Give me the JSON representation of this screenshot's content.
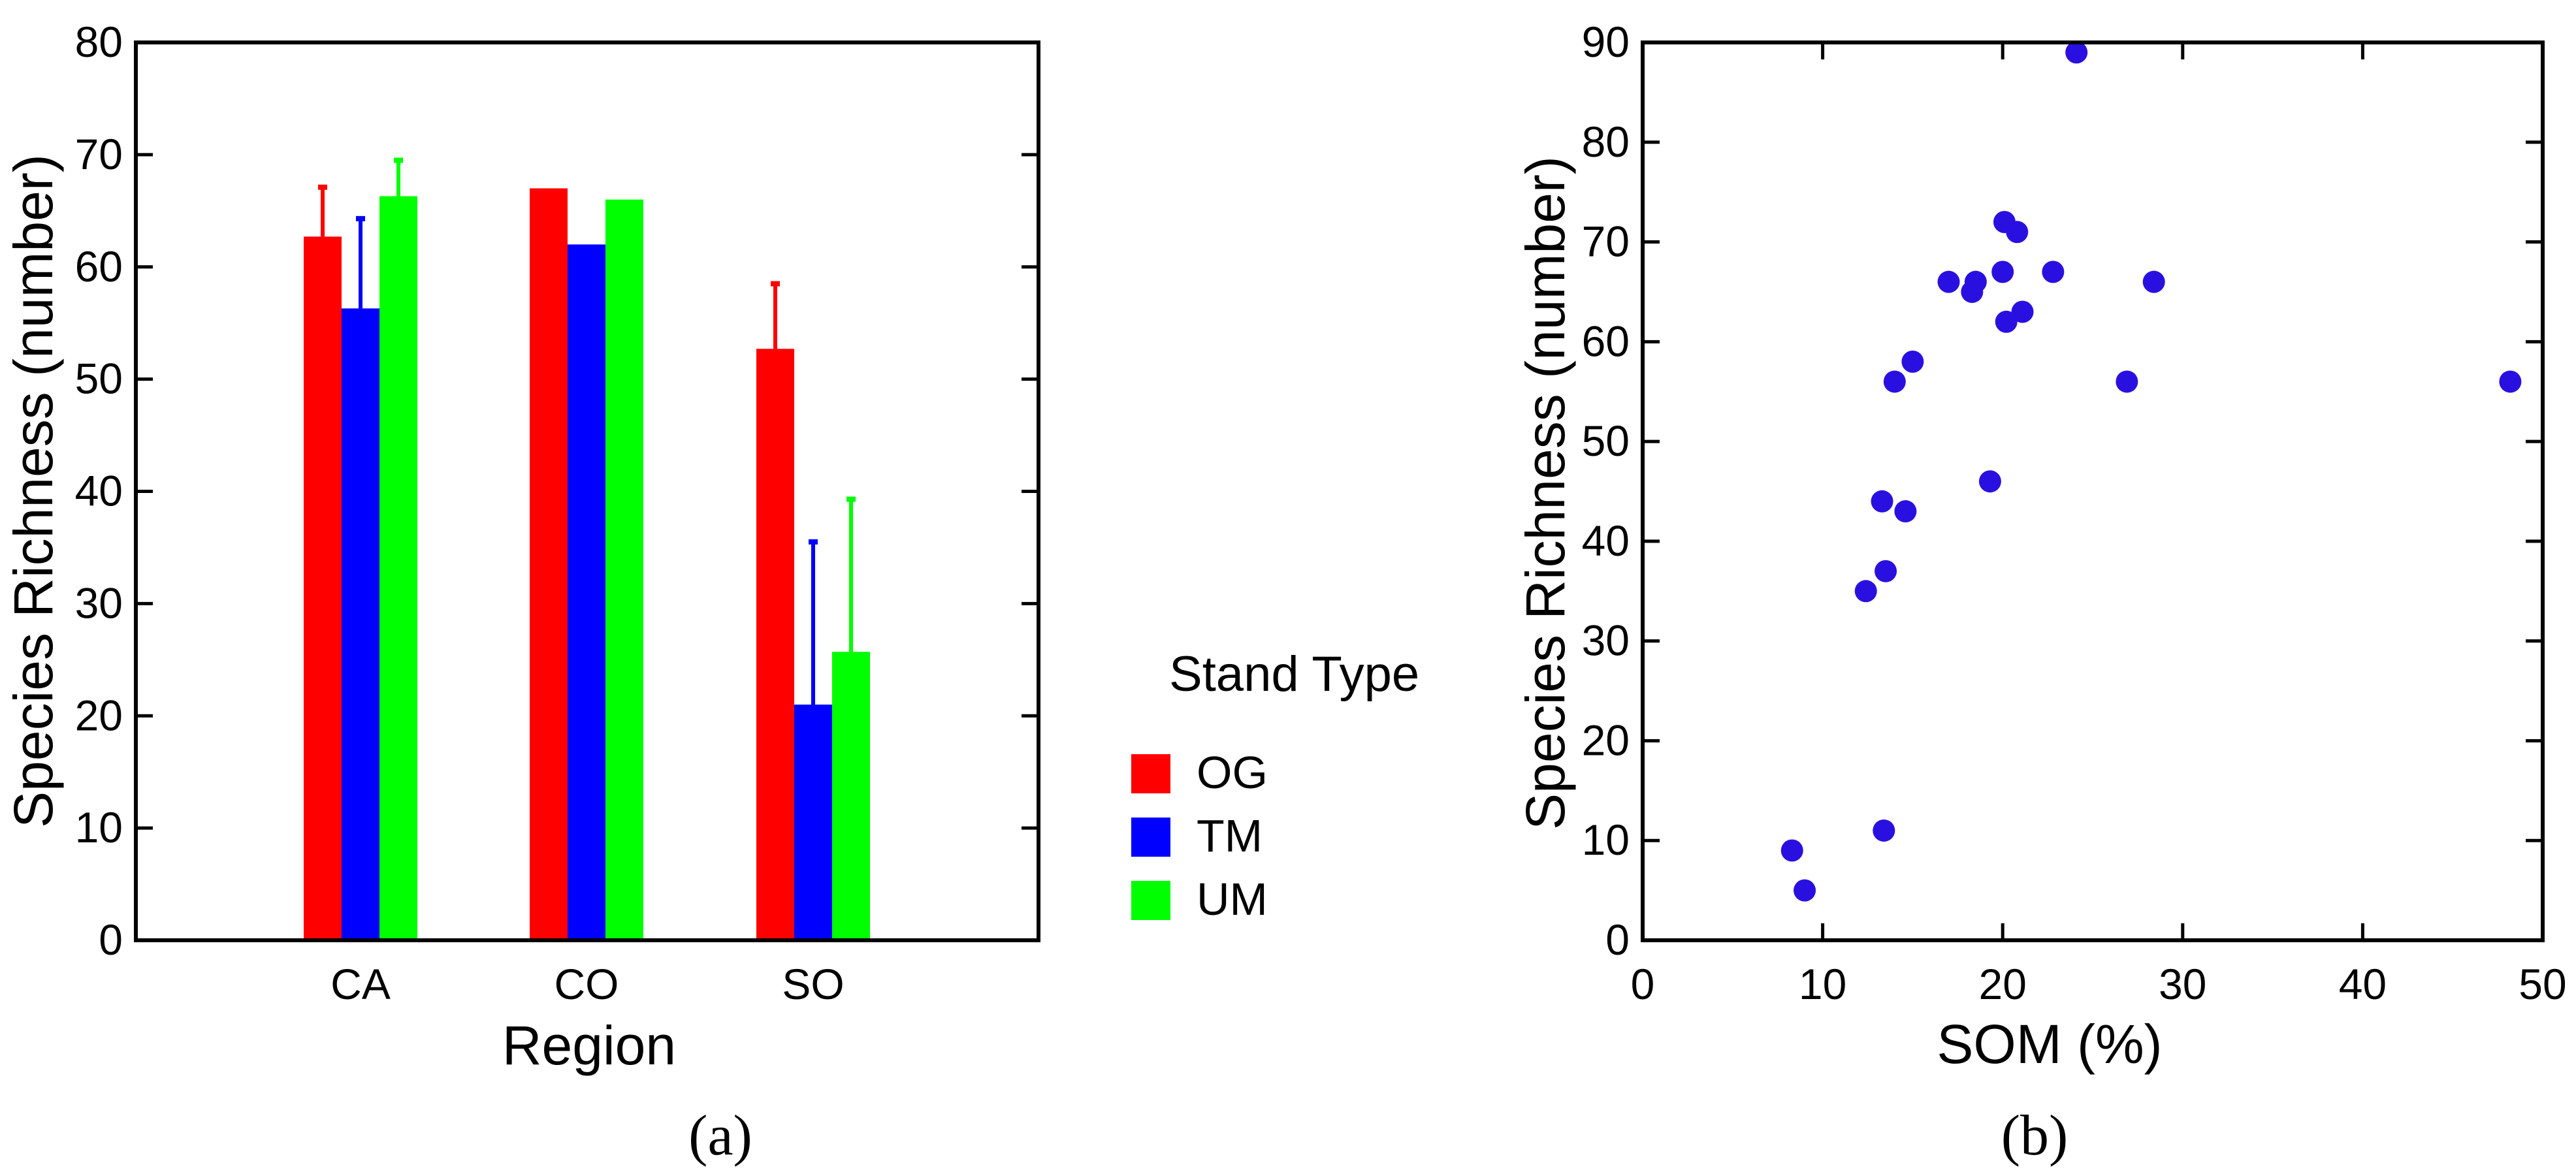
{
  "chart_data": [
    {
      "type": "bar",
      "panel_label": "(a)",
      "title": "",
      "xlabel": "Region",
      "ylabel": "Species Richness (number)",
      "ylim": [
        0,
        80
      ],
      "yticks": [
        "0",
        "10",
        "20",
        "30",
        "40",
        "50",
        "60",
        "70",
        "80"
      ],
      "categories": [
        "CA",
        "CO",
        "SO"
      ],
      "legend_title": "Stand Type",
      "legend_position": "right",
      "series": [
        {
          "name": "OG",
          "color": "#ff0000",
          "values": [
            62.7,
            67.0,
            52.7
          ],
          "errors": [
            4.4,
            0,
            5.8
          ]
        },
        {
          "name": "TM",
          "color": "#0000ff",
          "values": [
            56.3,
            62.0,
            21.0
          ],
          "errors": [
            8.0,
            0,
            14.5
          ]
        },
        {
          "name": "UM",
          "color": "#00ff00",
          "values": [
            66.3,
            66.0,
            25.7
          ],
          "errors": [
            3.2,
            0,
            13.6
          ]
        }
      ]
    },
    {
      "type": "scatter",
      "panel_label": "(b)",
      "title": "",
      "xlabel": "SOM (%)",
      "ylabel": "Species Richness (number)",
      "xlim": [
        0,
        50
      ],
      "ylim": [
        0,
        90
      ],
      "xticks": [
        "0",
        "10",
        "20",
        "30",
        "40",
        "50"
      ],
      "yticks": [
        "0",
        "10",
        "20",
        "30",
        "40",
        "50",
        "60",
        "70",
        "80",
        "90"
      ],
      "marker_color": "#2a10e0",
      "points": [
        {
          "x": 8.3,
          "y": 9
        },
        {
          "x": 9.0,
          "y": 5
        },
        {
          "x": 12.4,
          "y": 35
        },
        {
          "x": 13.3,
          "y": 44
        },
        {
          "x": 13.5,
          "y": 37
        },
        {
          "x": 13.4,
          "y": 11
        },
        {
          "x": 14.0,
          "y": 56
        },
        {
          "x": 14.6,
          "y": 43
        },
        {
          "x": 15.0,
          "y": 58
        },
        {
          "x": 17.0,
          "y": 66
        },
        {
          "x": 18.3,
          "y": 65
        },
        {
          "x": 18.5,
          "y": 66
        },
        {
          "x": 19.3,
          "y": 46
        },
        {
          "x": 20.0,
          "y": 67
        },
        {
          "x": 20.1,
          "y": 72
        },
        {
          "x": 20.2,
          "y": 62
        },
        {
          "x": 20.8,
          "y": 71
        },
        {
          "x": 21.1,
          "y": 63
        },
        {
          "x": 22.8,
          "y": 67
        },
        {
          "x": 24.1,
          "y": 89
        },
        {
          "x": 26.9,
          "y": 56
        },
        {
          "x": 28.4,
          "y": 66
        },
        {
          "x": 48.2,
          "y": 56
        }
      ]
    }
  ]
}
